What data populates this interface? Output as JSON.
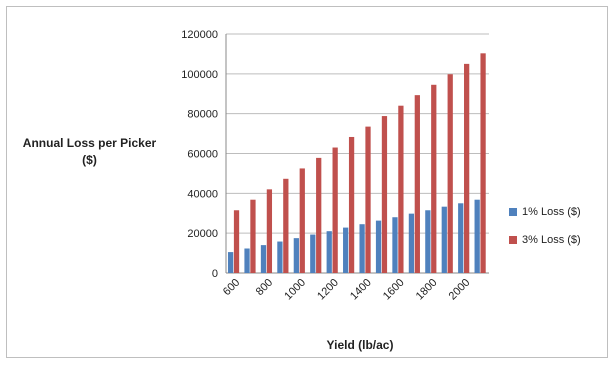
{
  "chart_data": {
    "type": "bar",
    "ylabel": "Annual Loss per Picker ($)",
    "xlabel": "Yield (lb/ac)",
    "ylim": [
      0,
      120000
    ],
    "yticks": [
      0,
      20000,
      40000,
      60000,
      80000,
      100000,
      120000
    ],
    "categories": [
      600,
      700,
      800,
      900,
      1000,
      1100,
      1200,
      1300,
      1400,
      1500,
      1600,
      1700,
      1800,
      1900,
      2000,
      2100
    ],
    "xtick_labels": [
      "600",
      "800",
      "1000",
      "1200",
      "1400",
      "1600",
      "1800",
      "2000"
    ],
    "grid": "horizontal",
    "legend": "right",
    "series": [
      {
        "name": "1% Loss ($)",
        "color": "#4f81bd",
        "values": [
          10500,
          12300,
          14000,
          15800,
          17500,
          19300,
          21000,
          22800,
          24500,
          26300,
          28000,
          29800,
          31500,
          33300,
          35000,
          36800
        ]
      },
      {
        "name": "3% Loss ($)",
        "color": "#c0504d",
        "values": [
          31500,
          36800,
          42000,
          47300,
          52500,
          57800,
          63000,
          68300,
          73500,
          78800,
          84000,
          89300,
          94500,
          99800,
          105000,
          110300
        ]
      }
    ]
  }
}
